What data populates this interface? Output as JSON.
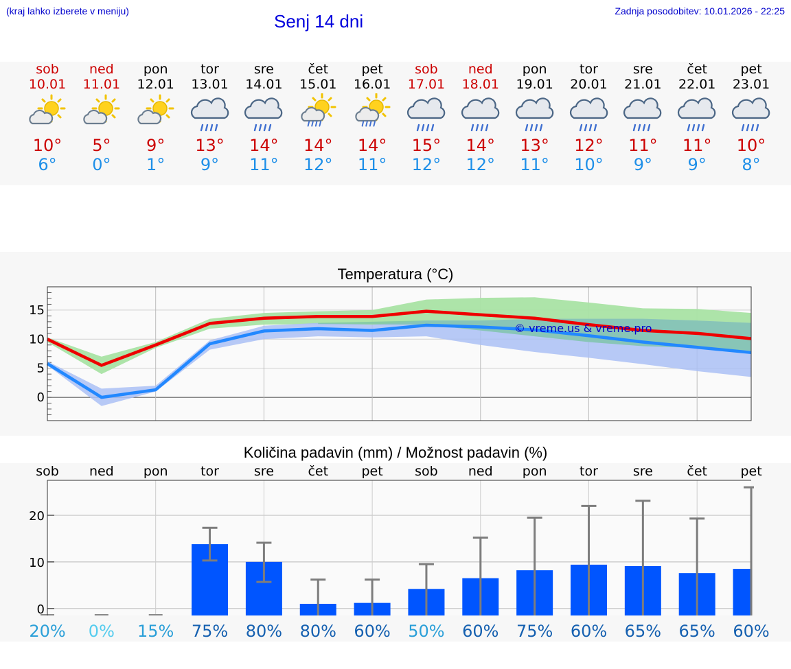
{
  "header": {
    "hint": "(kraj lahko izberete v meniju)",
    "title": "Senj 14 dni",
    "updated": "Zadnja posodobitev: 10.01.2026 - 22:25"
  },
  "days": [
    {
      "name": "sob",
      "date": "10.01",
      "weekend": true,
      "icon": "sun-cloud-icon",
      "tmax": "10°",
      "tmin": "6°"
    },
    {
      "name": "ned",
      "date": "11.01",
      "weekend": true,
      "icon": "sun-cloud-icon",
      "tmax": "5°",
      "tmin": "0°"
    },
    {
      "name": "pon",
      "date": "12.01",
      "weekend": false,
      "icon": "sun-cloud-icon",
      "tmax": "9°",
      "tmin": "1°"
    },
    {
      "name": "tor",
      "date": "13.01",
      "weekend": false,
      "icon": "rain-cloud-icon",
      "tmax": "13°",
      "tmin": "9°"
    },
    {
      "name": "sre",
      "date": "14.01",
      "weekend": false,
      "icon": "rain-cloud-icon",
      "tmax": "14°",
      "tmin": "11°"
    },
    {
      "name": "čet",
      "date": "15.01",
      "weekend": false,
      "icon": "sun-rain-icon",
      "tmax": "14°",
      "tmin": "12°"
    },
    {
      "name": "pet",
      "date": "16.01",
      "weekend": false,
      "icon": "sun-rain-icon",
      "tmax": "14°",
      "tmin": "11°"
    },
    {
      "name": "sob",
      "date": "17.01",
      "weekend": true,
      "icon": "rain-cloud-icon",
      "tmax": "15°",
      "tmin": "12°"
    },
    {
      "name": "ned",
      "date": "18.01",
      "weekend": true,
      "icon": "rain-cloud-icon",
      "tmax": "14°",
      "tmin": "12°"
    },
    {
      "name": "pon",
      "date": "19.01",
      "weekend": false,
      "icon": "rain-cloud-icon",
      "tmax": "13°",
      "tmin": "11°"
    },
    {
      "name": "tor",
      "date": "20.01",
      "weekend": false,
      "icon": "rain-cloud-icon",
      "tmax": "12°",
      "tmin": "10°"
    },
    {
      "name": "sre",
      "date": "21.01",
      "weekend": false,
      "icon": "rain-cloud-icon",
      "tmax": "11°",
      "tmin": "9°"
    },
    {
      "name": "čet",
      "date": "22.01",
      "weekend": false,
      "icon": "rain-cloud-icon",
      "tmax": "11°",
      "tmin": "9°"
    },
    {
      "name": "pet",
      "date": "23.01",
      "weekend": false,
      "icon": "rain-cloud-icon",
      "tmax": "10°",
      "tmin": "8°"
    }
  ],
  "chart_data": [
    {
      "type": "line",
      "title": "Temperatura (°C)",
      "watermark": "© vreme.us & vreme.pro",
      "ylim": [
        -4,
        19
      ],
      "yticks": [
        0,
        5,
        10,
        15
      ],
      "grid": true,
      "colors": {
        "max": "#ee0000",
        "min": "#2288ff",
        "max_band": "#a9e3a4",
        "min_band": "#aac0f5",
        "overlap_band": "#7cc4a6"
      },
      "series": [
        {
          "name": "max",
          "values": [
            10,
            5.5,
            9,
            12.7,
            13.6,
            13.9,
            13.9,
            14.8,
            14.2,
            13.6,
            12.5,
            11.5,
            11,
            10.1
          ],
          "band_low": [
            9.5,
            4,
            8.5,
            11.8,
            12.5,
            12.6,
            12.5,
            12.5,
            11.5,
            10.5,
            9.5,
            8.8,
            8.5,
            8
          ],
          "band_high": [
            10.3,
            7,
            9.5,
            13.5,
            14.5,
            14.8,
            15,
            16.8,
            17.1,
            17.2,
            16.3,
            15.3,
            15.2,
            14.5
          ]
        },
        {
          "name": "min",
          "values": [
            5.8,
            0,
            1.3,
            9.2,
            11.4,
            11.8,
            11.5,
            12.4,
            12.1,
            11.6,
            10.6,
            9.5,
            8.6,
            7.7
          ],
          "band_low": [
            5.5,
            -1.5,
            1,
            8.2,
            10,
            10.5,
            10.3,
            10.5,
            9,
            7.8,
            6.8,
            5.7,
            4.5,
            3.5
          ],
          "band_high": [
            6.2,
            1.5,
            2,
            9.8,
            12.3,
            12.8,
            12.5,
            13.2,
            13.2,
            13.5,
            13.5,
            13.5,
            13.2,
            12.8
          ]
        }
      ]
    },
    {
      "type": "bar",
      "title": "Količina padavin (mm) / Možnost padavin (%)",
      "categories": [
        "sob",
        "ned",
        "pon",
        "tor",
        "sre",
        "čet",
        "pet",
        "sob",
        "ned",
        "pon",
        "tor",
        "sre",
        "čet",
        "pet"
      ],
      "values": [
        0,
        0,
        0,
        13.8,
        10,
        1,
        1.2,
        4.2,
        6.5,
        8.2,
        9.4,
        9.1,
        7.6,
        8.5
      ],
      "err_low": [
        0,
        0,
        0,
        10.3,
        5.7,
        0,
        0,
        0,
        0,
        0,
        0,
        0,
        0,
        0
      ],
      "err_high": [
        0,
        0,
        0,
        17.3,
        14.1,
        6.2,
        6.2,
        9.5,
        15.2,
        19.5,
        22,
        23.1,
        19.3,
        26
      ],
      "ylim": [
        -1.5,
        27.5
      ],
      "yticks": [
        0,
        10,
        20
      ],
      "bar_color": "#0055ff",
      "probability": [
        "20%",
        "0%",
        "15%",
        "75%",
        "80%",
        "80%",
        "60%",
        "50%",
        "60%",
        "75%",
        "60%",
        "65%",
        "65%",
        "60%"
      ],
      "probability_colors": [
        "#2a9fd8",
        "#55ccee",
        "#2a9fd8",
        "#1560b0",
        "#1560b0",
        "#1560b0",
        "#1560b0",
        "#2a9fd8",
        "#1560b0",
        "#1560b0",
        "#1560b0",
        "#1560b0",
        "#1560b0",
        "#1560b0"
      ]
    }
  ]
}
